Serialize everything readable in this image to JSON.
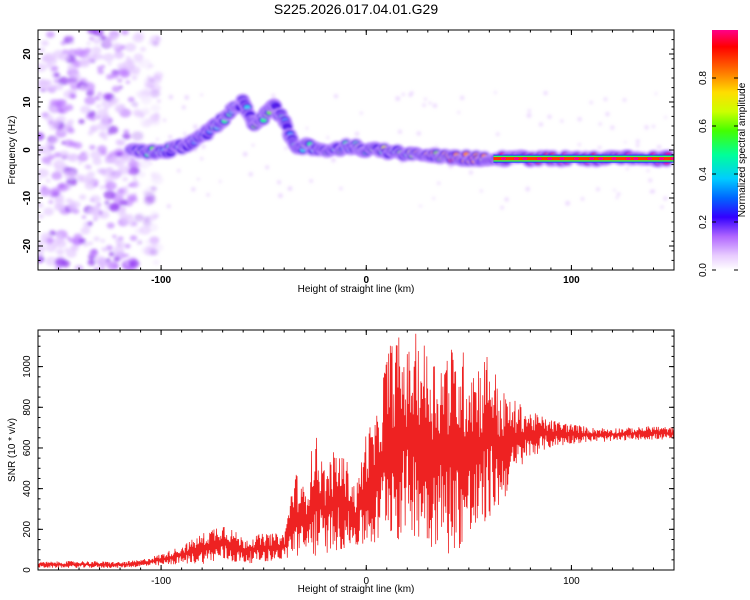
{
  "figure": {
    "title": "S225.2026.017.04.01.G29"
  },
  "colors": {
    "snr_line": "#ee2222",
    "frame": "#000000",
    "colormap": [
      "#ffffff",
      "#e8ccff",
      "#cc88ff",
      "#8800ff",
      "#0000ff",
      "#00ccff",
      "#00ff66",
      "#88ff00",
      "#ffff00",
      "#ff8800",
      "#ff0000",
      "#ff0099"
    ]
  },
  "chart_data": [
    {
      "type": "heatmap",
      "name": "spectrogram",
      "title": "S225.2026.017.04.01.G29",
      "xlabel": "Height of straight line (km)",
      "ylabel": "Frequency (Hz)",
      "xlim": [
        -160,
        150
      ],
      "ylim": [
        -25,
        25
      ],
      "xticks": [
        -100,
        0,
        100
      ],
      "xtick_labels": [
        "-100",
        "0",
        "100"
      ],
      "yticks": [
        -20,
        -10,
        0,
        10,
        20
      ],
      "ytick_labels": [
        "-20",
        "-10",
        "0",
        "10",
        "20"
      ],
      "colorbar": {
        "label": "Normalized spectral amplitude",
        "range": [
          0,
          1
        ],
        "ticks": [
          0.0,
          0.2,
          0.4,
          0.6,
          0.8
        ],
        "tick_labels": [
          "0.0",
          "0.2",
          "0.4",
          "0.6",
          "0.8"
        ]
      },
      "signal_ridge": [
        {
          "x": -115,
          "freq": -0.5,
          "amp": 0.35
        },
        {
          "x": -108,
          "freq": -0.3,
          "amp": 0.4
        },
        {
          "x": -100,
          "freq": -0.5,
          "amp": 0.35
        },
        {
          "x": -92,
          "freq": 0.5,
          "amp": 0.4
        },
        {
          "x": -85,
          "freq": 1.5,
          "amp": 0.35
        },
        {
          "x": -78,
          "freq": 3.5,
          "amp": 0.35
        },
        {
          "x": -72,
          "freq": 5.5,
          "amp": 0.4
        },
        {
          "x": -66,
          "freq": 8.0,
          "amp": 0.35
        },
        {
          "x": -60,
          "freq": 10.0,
          "amp": 0.3
        },
        {
          "x": -55,
          "freq": 5.5,
          "amp": 0.4
        },
        {
          "x": -50,
          "freq": 7.0,
          "amp": 0.45
        },
        {
          "x": -45,
          "freq": 9.0,
          "amp": 0.35
        },
        {
          "x": -40,
          "freq": 6.0,
          "amp": 0.35
        },
        {
          "x": -35,
          "freq": 0.5,
          "amp": 0.35
        },
        {
          "x": -28,
          "freq": 0.8,
          "amp": 0.4
        },
        {
          "x": -20,
          "freq": -0.2,
          "amp": 0.45
        },
        {
          "x": -12,
          "freq": 0.5,
          "amp": 0.4
        },
        {
          "x": -5,
          "freq": 1.0,
          "amp": 0.45
        },
        {
          "x": 0,
          "freq": 0.0,
          "amp": 0.5
        },
        {
          "x": 8,
          "freq": -0.3,
          "amp": 0.5
        },
        {
          "x": 16,
          "freq": -0.5,
          "amp": 0.55
        },
        {
          "x": 24,
          "freq": -1.0,
          "amp": 0.55
        },
        {
          "x": 32,
          "freq": -1.3,
          "amp": 0.6
        },
        {
          "x": 40,
          "freq": -1.5,
          "amp": 0.65
        },
        {
          "x": 48,
          "freq": -1.6,
          "amp": 0.7
        },
        {
          "x": 56,
          "freq": -1.7,
          "amp": 0.75
        },
        {
          "x": 64,
          "freq": -1.8,
          "amp": 0.85
        },
        {
          "x": 72,
          "freq": -1.8,
          "amp": 0.95
        },
        {
          "x": 80,
          "freq": -1.8,
          "amp": 0.95
        },
        {
          "x": 90,
          "freq": -1.8,
          "amp": 0.9
        },
        {
          "x": 100,
          "freq": -1.8,
          "amp": 0.95
        },
        {
          "x": 110,
          "freq": -1.8,
          "amp": 0.9
        },
        {
          "x": 120,
          "freq": -1.8,
          "amp": 0.95
        },
        {
          "x": 130,
          "freq": -1.8,
          "amp": 0.9
        },
        {
          "x": 140,
          "freq": -1.8,
          "amp": 0.95
        },
        {
          "x": 148,
          "freq": -1.8,
          "amp": 0.9
        }
      ],
      "noise_region_x": [
        -160,
        -113
      ]
    },
    {
      "type": "line",
      "name": "snr",
      "xlabel": "Height of straight line (km)",
      "ylabel": "SNR (10 * v/v)",
      "xlim": [
        -160,
        150
      ],
      "ylim": [
        0,
        1180
      ],
      "xticks": [
        -100,
        0,
        100
      ],
      "xtick_labels": [
        "-100",
        "0",
        "100"
      ],
      "yticks": [
        0,
        200,
        400,
        600,
        800,
        1000
      ],
      "ytick_labels": [
        "0",
        "200",
        "400",
        "600",
        "800",
        "1000"
      ],
      "envelope": {
        "x": [
          -160,
          -140,
          -120,
          -110,
          -100,
          -90,
          -80,
          -70,
          -60,
          -50,
          -40,
          -35,
          -30,
          -25,
          -20,
          -15,
          -10,
          -5,
          0,
          5,
          10,
          15,
          20,
          25,
          30,
          35,
          40,
          45,
          50,
          55,
          60,
          65,
          70,
          75,
          80,
          85,
          90,
          100,
          110,
          120,
          130,
          140,
          150
        ],
        "lower": [
          10,
          10,
          10,
          15,
          20,
          30,
          30,
          40,
          30,
          40,
          50,
          60,
          60,
          60,
          80,
          90,
          100,
          110,
          100,
          100,
          200,
          120,
          200,
          150,
          100,
          120,
          80,
          100,
          90,
          150,
          250,
          300,
          400,
          500,
          550,
          580,
          600,
          620,
          630,
          630,
          640,
          640,
          640
        ],
        "upper": [
          40,
          45,
          40,
          50,
          80,
          120,
          180,
          240,
          160,
          180,
          180,
          500,
          400,
          690,
          500,
          600,
          560,
          400,
          700,
          750,
          1100,
          1170,
          1080,
          1180,
          1100,
          1050,
          1120,
          1070,
          1100,
          1040,
          1100,
          900,
          850,
          820,
          780,
          760,
          740,
          720,
          700,
          700,
          700,
          710,
          700
        ]
      }
    }
  ]
}
